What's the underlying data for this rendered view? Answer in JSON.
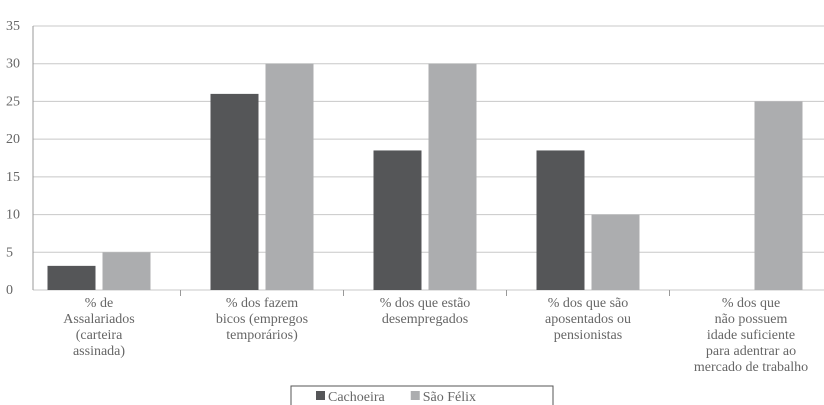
{
  "chart_data": {
    "type": "bar",
    "categories": [
      "% de\nAssalariados\n(carteira\nassinada)",
      "% dos fazem\nbicos (empregos\ntemporários)",
      "% dos que estão\ndesempregados",
      "% dos que são\naposentados ou\npensionistas",
      "% dos que\nnão possuem\nidade suficiente\npara adentrar ao\nmercado de trabalho"
    ],
    "series": [
      {
        "name": "Cachoeira",
        "color": "#555658",
        "values": [
          3.2,
          26,
          18.5,
          18.5,
          0
        ]
      },
      {
        "name": "São Félix",
        "color": "#acadaf",
        "values": [
          5,
          30,
          30,
          10,
          25
        ]
      }
    ],
    "ylim": [
      0,
      35
    ],
    "yticks": [
      0,
      5,
      10,
      15,
      20,
      25,
      30,
      35
    ],
    "grid": true
  }
}
